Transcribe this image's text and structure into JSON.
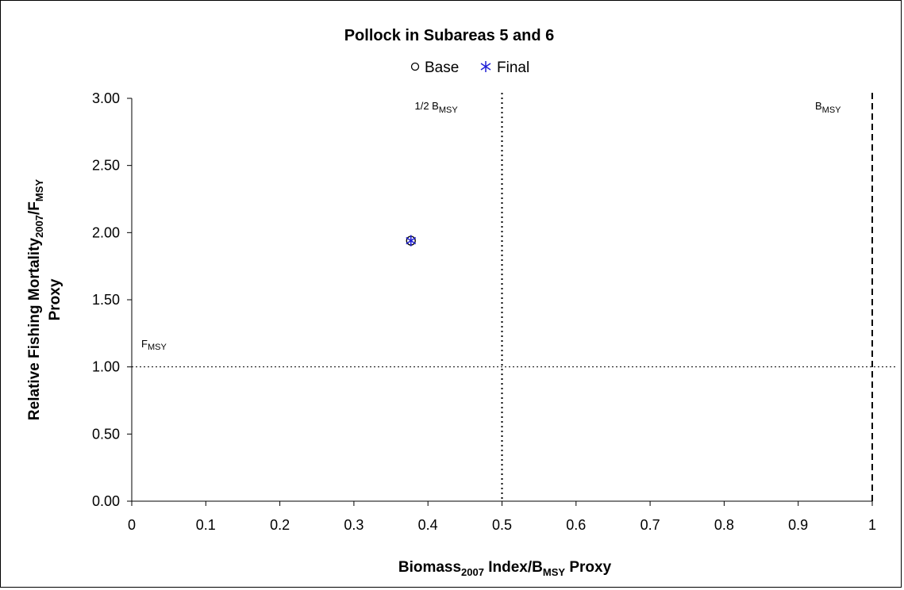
{
  "chart_data": {
    "type": "scatter",
    "title": "Pollock in Subareas 5 and 6",
    "xlabel": {
      "main": "Biomass",
      "sub": "2007",
      "rest": " Index/B",
      "sub2": "MSY",
      "tail": " Proxy"
    },
    "ylabel": {
      "line1_main": "Relative Fishing Mortality",
      "line1_sub": "2007",
      "line1_rest": "/F",
      "line1_sub2": "MSY",
      "line2": "Proxy"
    },
    "xlim": [
      0,
      1
    ],
    "ylim": [
      0,
      3
    ],
    "x_ticks": [
      0,
      0.1,
      0.2,
      0.3,
      0.4,
      0.5,
      0.6,
      0.7,
      0.8,
      0.9,
      1
    ],
    "x_tick_labels": [
      "0",
      "0.1",
      "0.2",
      "0.3",
      "0.4",
      "0.5",
      "0.6",
      "0.7",
      "0.8",
      "0.9",
      "1"
    ],
    "y_ticks": [
      0,
      0.5,
      1,
      1.5,
      2,
      2.5,
      3
    ],
    "y_tick_labels": [
      "0.00",
      "0.50",
      "1.00",
      "1.50",
      "2.00",
      "2.50",
      "3.00"
    ],
    "legend_position": "top-center",
    "series": [
      {
        "name": "Base",
        "marker": "circle",
        "color": "#000000",
        "points": [
          {
            "x": 0.377,
            "y": 1.94
          }
        ]
      },
      {
        "name": "Final",
        "marker": "asterisk",
        "color": "#1f1fd6",
        "points": [
          {
            "x": 0.377,
            "y": 1.94
          }
        ]
      }
    ],
    "reference_lines": [
      {
        "axis": "x",
        "value": 0.5,
        "style": "dotted",
        "label_main": "1/2 B",
        "label_sub": "MSY"
      },
      {
        "axis": "x",
        "value": 1.0,
        "style": "dashed",
        "label_main": "B",
        "label_sub": "MSY"
      },
      {
        "axis": "y",
        "value": 1.0,
        "style": "fine-dotted",
        "label_main": "F",
        "label_sub": "MSY"
      }
    ]
  }
}
